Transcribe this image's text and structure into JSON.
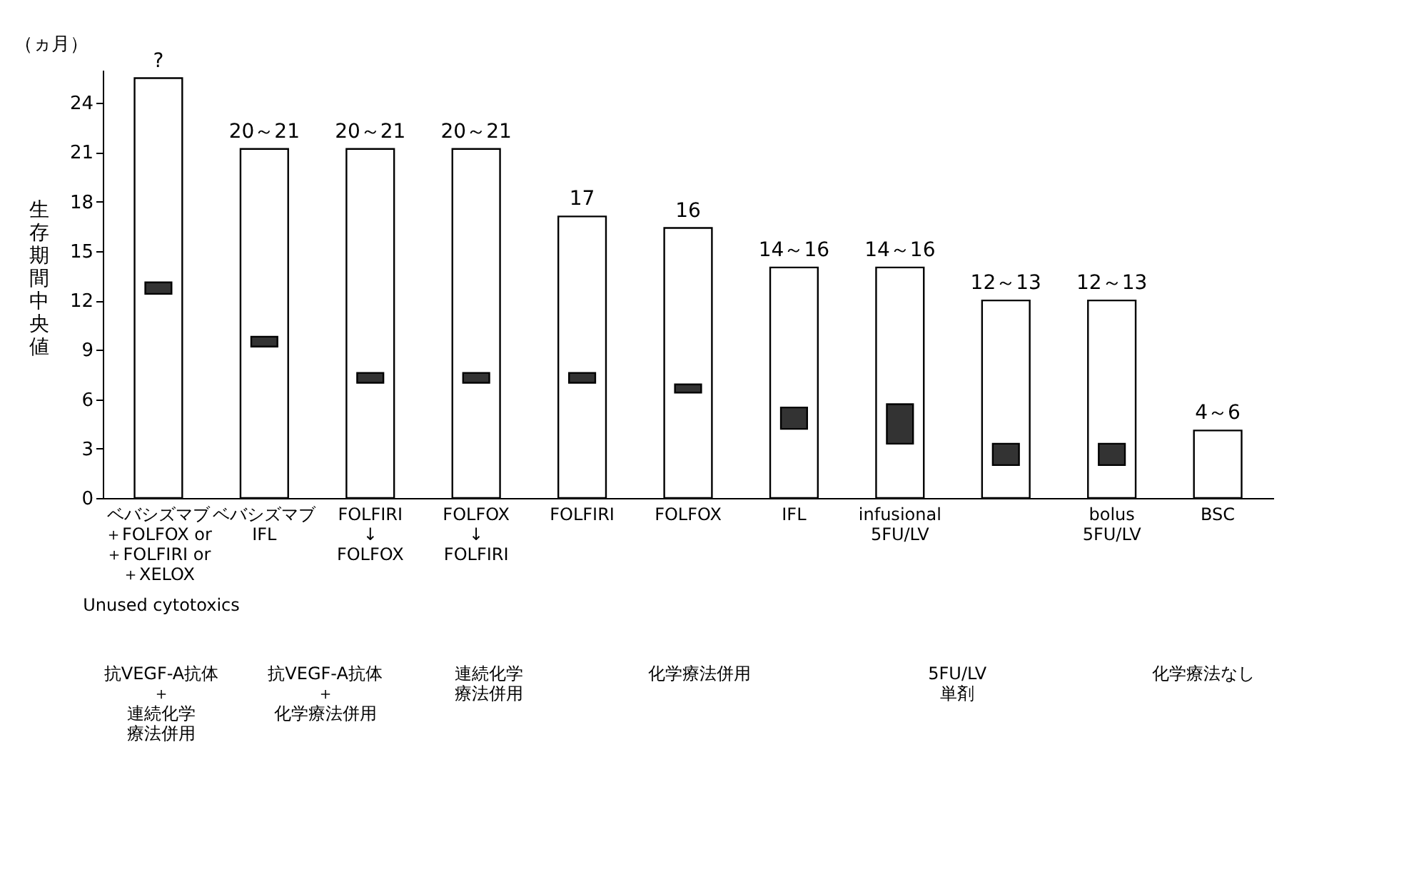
{
  "chart_data": {
    "type": "bar",
    "ylabel": "生存期間中央値",
    "categories": [
      "ベバシズマブ＋FOLFOX or\n＋FOLFIRI or\n＋XELOX",
      "ベバシズマブ\nIFL",
      "FOLFIRI\n↓\nFOLFOX",
      "FOLFOX\n↓\nFOLFIRI",
      "FOLFIRI",
      "FOLFOX",
      "IFL",
      "infusional\n5FU/LV",
      null,
      "bolus\n5FU/LV",
      "BSC"
    ],
    "series": [
      {
        "color": "#ffffff",
        "values": [
          25.5,
          21.2,
          21.2,
          21.2,
          17.1,
          16.4,
          14.0,
          14.0,
          12.0,
          12.0,
          4.1
        ],
        "value_labels": [
          "?",
          "20～21",
          "20～21",
          "20～21",
          "17",
          "16",
          "14～16",
          "14～16",
          "12～13",
          "12～13",
          "4～6"
        ]
      },
      {
        "color": "#333333",
        "base": [
          12.4,
          9.2,
          7.0,
          7.0,
          7.0,
          6.4,
          4.2,
          3.3,
          2.0,
          2.0,
          null
        ],
        "values": [
          0.7,
          0.6,
          0.6,
          0.6,
          0.6,
          0.5,
          1.3,
          2.4,
          1.3,
          1.3,
          null
        ]
      }
    ],
    "ylim": [
      0,
      26
    ],
    "yticks": [
      0,
      3,
      6,
      9,
      12,
      15,
      18,
      21,
      24
    ],
    "annotations": [
      "（ヵ月）",
      "Unused cytotoxics",
      "抗VEGF-A抗体＋連続化学療法併用",
      "抗VEGF-A抗体＋化学療法併用",
      "連続化学療法併用",
      "化学療法併用",
      "5FU/LV\n単剤",
      "化学療法なし"
    ]
  }
}
